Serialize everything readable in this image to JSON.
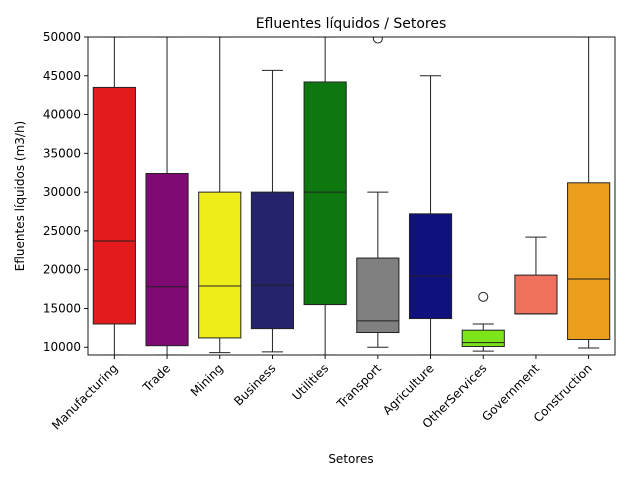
{
  "chart_data": {
    "type": "box",
    "title": "Efluentes líquidos / Setores",
    "xlabel": "Setores",
    "ylabel": "Efluentes líquidos (m3/h)",
    "ylim": [
      9000,
      50000
    ],
    "yticks": [
      10000,
      15000,
      20000,
      25000,
      30000,
      35000,
      40000,
      45000,
      50000
    ],
    "grid": false,
    "legend": "none",
    "categories": [
      "Manufacturing",
      "Trade",
      "Mining",
      "Business",
      "Utilities",
      "Transport",
      "Agriculture",
      "OtherServices",
      "Government",
      "Construction"
    ],
    "boxes": [
      {
        "name": "Manufacturing",
        "color": "#e41a1c",
        "whisker_low": 9000,
        "q1": 13000,
        "median": 23700,
        "q3": 43500,
        "whisker_high": 50000,
        "outliers": []
      },
      {
        "name": "Trade",
        "color": "#800a73",
        "whisker_low": 9000,
        "q1": 10200,
        "median": 17800,
        "q3": 32400,
        "whisker_high": 50000,
        "outliers": []
      },
      {
        "name": "Mining",
        "color": "#f0ee1a",
        "whisker_low": 9300,
        "q1": 11200,
        "median": 17900,
        "q3": 30000,
        "whisker_high": 50000,
        "outliers": []
      },
      {
        "name": "Business",
        "color": "#24236b",
        "whisker_low": 9400,
        "q1": 12400,
        "median": 18000,
        "q3": 30000,
        "whisker_high": 45700,
        "outliers": []
      },
      {
        "name": "Utilities",
        "color": "#0e7710",
        "whisker_low": 9000,
        "q1": 15500,
        "median": 30000,
        "q3": 44200,
        "whisker_high": 50000,
        "outliers": []
      },
      {
        "name": "Transport",
        "color": "#808080",
        "whisker_low": 10000,
        "q1": 11900,
        "median": 13400,
        "q3": 21500,
        "whisker_high": 30000,
        "outliers": [
          49800
        ]
      },
      {
        "name": "Agriculture",
        "color": "#10107f",
        "whisker_low": 9000,
        "q1": 13700,
        "median": 19200,
        "q3": 27200,
        "whisker_high": 45000,
        "outliers": []
      },
      {
        "name": "OtherServices",
        "color": "#7ce51a",
        "whisker_low": 9500,
        "q1": 10100,
        "median": 10600,
        "q3": 12200,
        "whisker_high": 13000,
        "outliers": [
          16500
        ]
      },
      {
        "name": "Government",
        "color": "#f0705e",
        "whisker_low": 14300,
        "q1": 14300,
        "median": 14300,
        "q3": 19300,
        "whisker_high": 24200,
        "outliers": []
      },
      {
        "name": "Construction",
        "color": "#eb9f1c",
        "whisker_low": 9900,
        "q1": 11000,
        "median": 18800,
        "q3": 31200,
        "whisker_high": 50000,
        "outliers": []
      }
    ]
  }
}
